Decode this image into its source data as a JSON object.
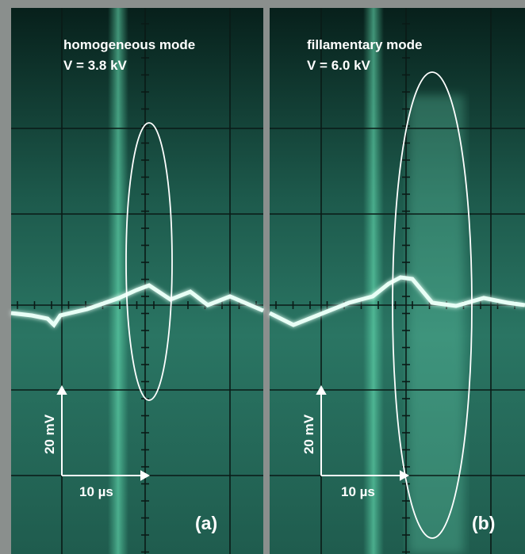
{
  "panels": [
    {
      "mode": "homogeneous mode",
      "voltage": "V = 3.8 kV",
      "y_scale": "20 mV",
      "x_scale": "10 µs",
      "label": "(a)"
    },
    {
      "mode": "fillamentary mode",
      "voltage": "V = 6.0 kV",
      "y_scale": "20 mV",
      "x_scale": "10 µs",
      "label": "(b)"
    }
  ]
}
